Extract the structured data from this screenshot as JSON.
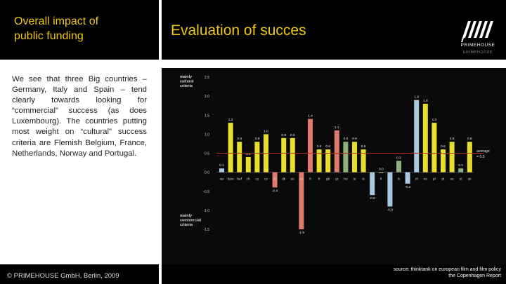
{
  "slide": {
    "left_title": "Overall impact of\npublic funding",
    "right_title": "Evaluation of succes",
    "body": "We see that three Big countries – Germany, Italy and Spain – tend clearly towards looking for “commercial” success (as does Luxembourg). The countries putting most weight on “cultural” success criteria are Flemish Belgium, France, Netherlands, Norway and Portugal.",
    "footer": "© PRIMEHOUSE GmbH, Berlin, 2009",
    "source": "source: thinktank on european film and film policy\nthe Copenhagen Report",
    "logo_text": "PRIMEHOUSE",
    "logo_subtext": "PRIMEHOUSE"
  },
  "colors": {
    "title": "#f0c814",
    "cultural": "#e8df2a",
    "blue": "#a8c8e0",
    "red": "#e07a6c",
    "green": "#8fb07a",
    "average": "#b03020"
  },
  "chart_data": {
    "type": "bar",
    "top_label": "mainly\ncultural\ncriteria",
    "bottom_label": "mainly\ncommercial\ncriteria",
    "average_label": "average\n= 0.5",
    "average": 0.5,
    "ylim": [
      -1.5,
      2.5
    ],
    "yticks": [
      -1.5,
      -1.0,
      -0.5,
      0.0,
      0.5,
      1.0,
      1.5,
      2.0,
      2.5
    ],
    "ytick_labels": [
      "-1.5",
      "-1.0",
      "-0.5",
      "0.0",
      "0.5",
      "1.0",
      "1.5",
      "2.0",
      "2.5"
    ],
    "categories": [
      "au",
      "bw",
      "bf",
      "ch",
      "cy",
      "cz",
      "de",
      "dk",
      "ee",
      "es",
      "fi",
      "fr",
      "gb",
      "gr",
      "hu",
      "ie",
      "is",
      "it",
      "lt",
      "lu",
      "lv",
      "mt",
      "nl",
      "no",
      "pl",
      "pt",
      "se",
      "si",
      "sk"
    ],
    "category_labels": [
      "au",
      "bew",
      "bef",
      "ch",
      "cy",
      "cz",
      "de",
      "dk",
      "ee",
      "es",
      "fi",
      "fr",
      "gb",
      "gr",
      "hu",
      "ie",
      "is",
      "it",
      "lt",
      "lu",
      "lv",
      "mt",
      "nl",
      "no",
      "pl",
      "pt",
      "se",
      "si",
      "sk"
    ],
    "values": [
      0.1,
      1.3,
      0.8,
      0.4,
      0.8,
      1.0,
      -0.4,
      0.9,
      0.9,
      -1.5,
      1.4,
      0.6,
      0.6,
      1.1,
      0.8,
      0.8,
      0.6,
      -0.6,
      0.0,
      -0.9,
      0.3,
      -0.3,
      1.9,
      1.8,
      1.3,
      0.6,
      0.8,
      0.1,
      0.8
    ],
    "value_labels": [
      "0.1",
      "1.3",
      "0.8",
      "0.4",
      "0.8",
      "1.0",
      "-0.4",
      "0.9",
      "0.9",
      "-1.5",
      "1.4",
      "0.6",
      "0.6",
      "1.1",
      "0.8",
      "0.8",
      "0.6",
      "-0.6",
      "0.0",
      "-0.9",
      "0.3",
      "-0.3",
      "1.9",
      "1.8",
      "1.3",
      "0.6",
      "0.8",
      "0.1",
      "0.8"
    ],
    "bar_colors": [
      "blue",
      "yellow",
      "yellow",
      "yellow",
      "yellow",
      "yellow",
      "red",
      "yellow",
      "yellow",
      "red",
      "red",
      "yellow",
      "yellow",
      "red",
      "green",
      "yellow",
      "yellow",
      "blue",
      "green",
      "blue",
      "green",
      "blue",
      "blue",
      "yellow",
      "yellow",
      "yellow",
      "yellow",
      "green",
      "yellow"
    ]
  }
}
